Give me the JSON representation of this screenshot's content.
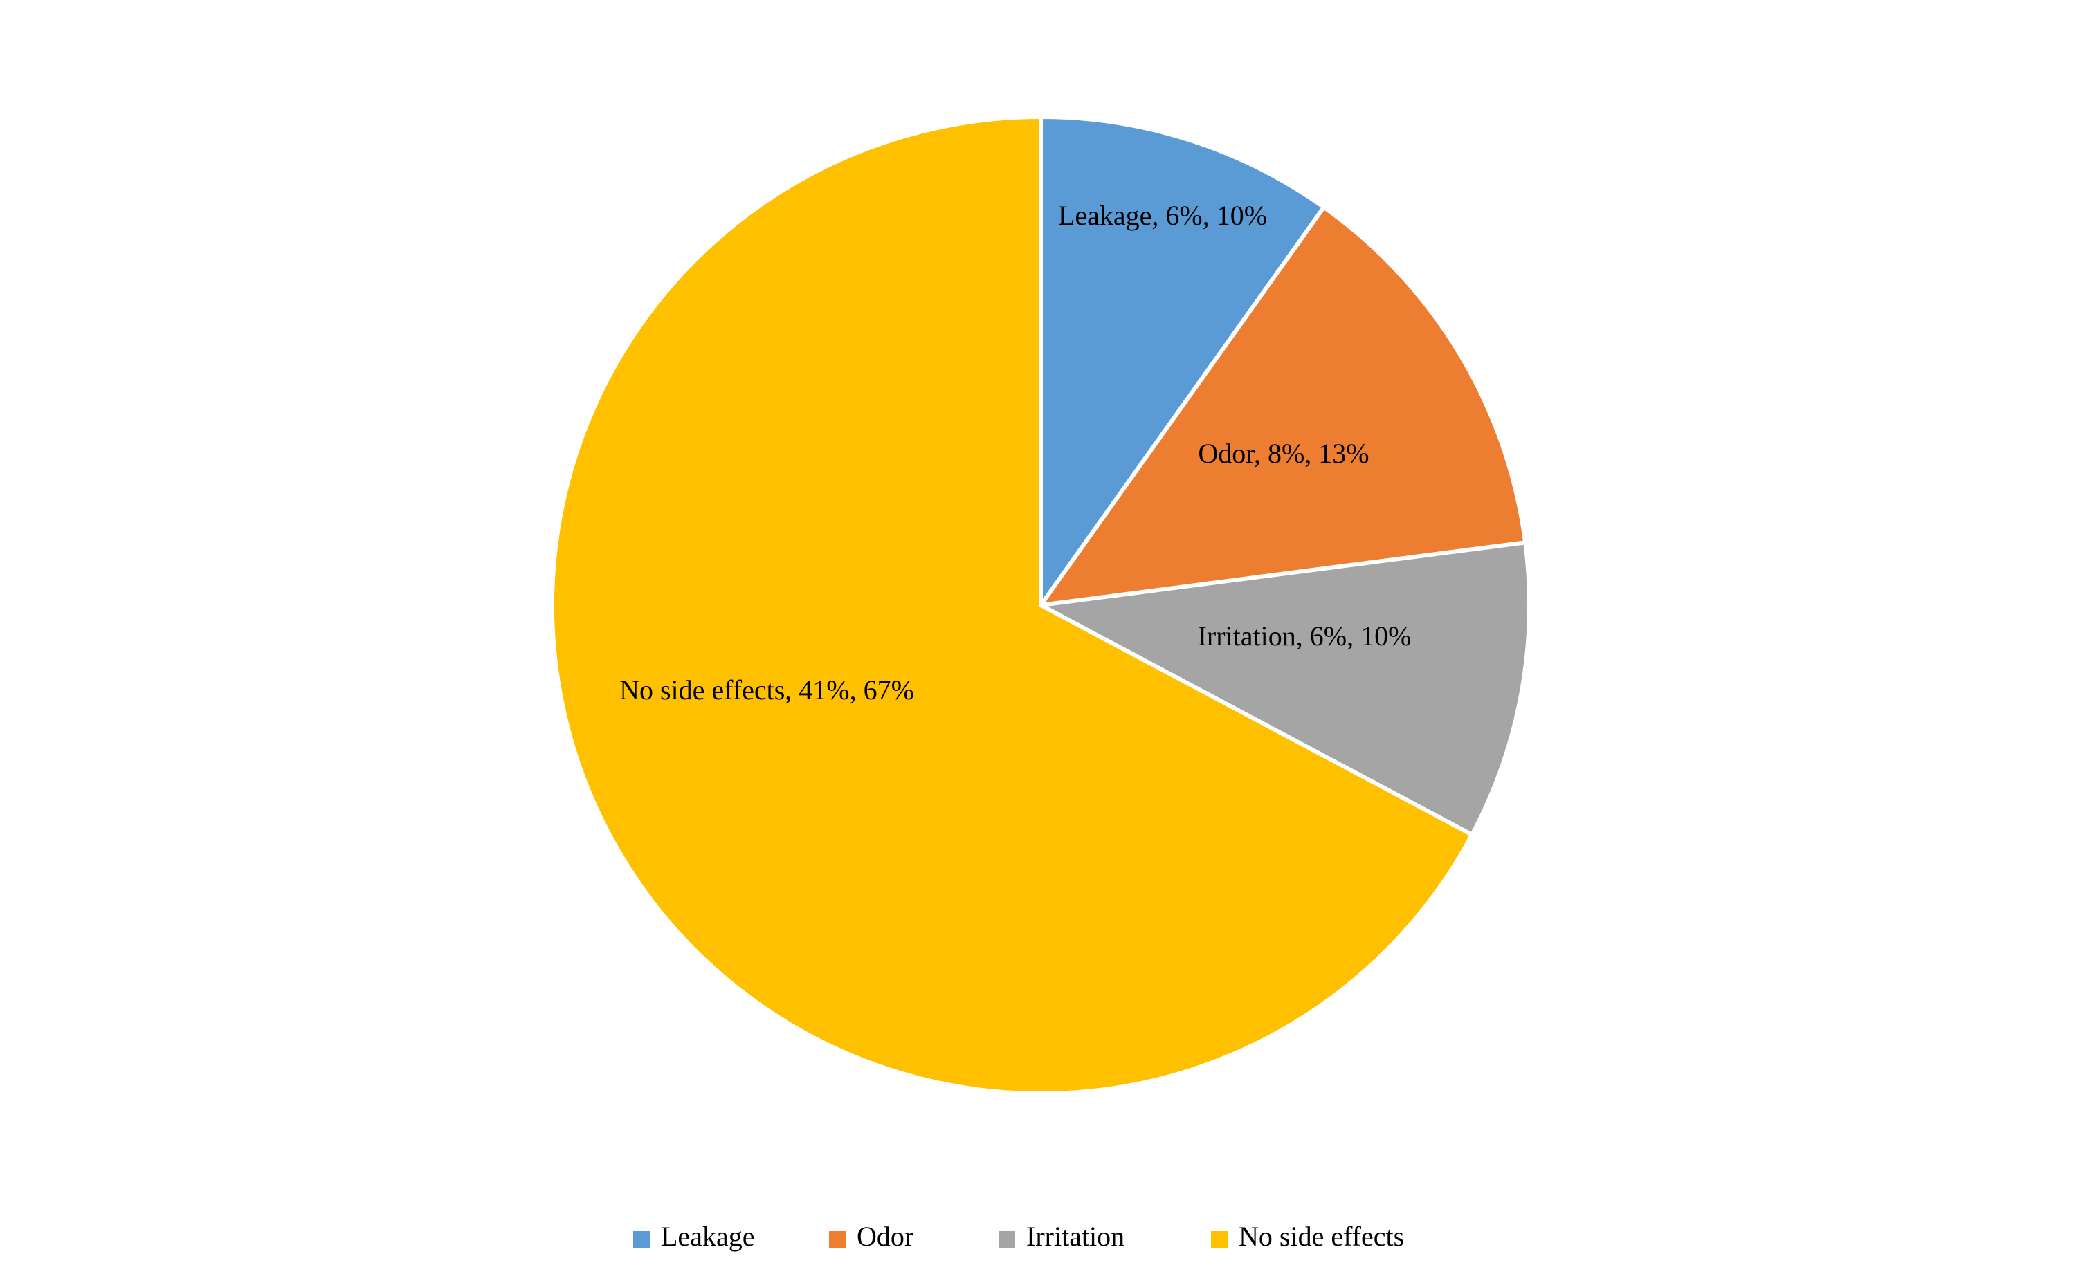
{
  "chart_data": {
    "type": "pie",
    "categories": [
      "Leakage",
      "Odor",
      "Irritation",
      "No side effects"
    ],
    "values": [
      6,
      8,
      6,
      41
    ],
    "value_labels": [
      "Leakage, 6%, 10%",
      "Odor, 8%, 13%",
      "Irritation, 6%, 10%",
      "No side effects, 41%, 67%"
    ],
    "colors": [
      "#5b9bd5",
      "#ed7d31",
      "#a5a5a5",
      "#ffc000"
    ],
    "legend": "bottom"
  }
}
